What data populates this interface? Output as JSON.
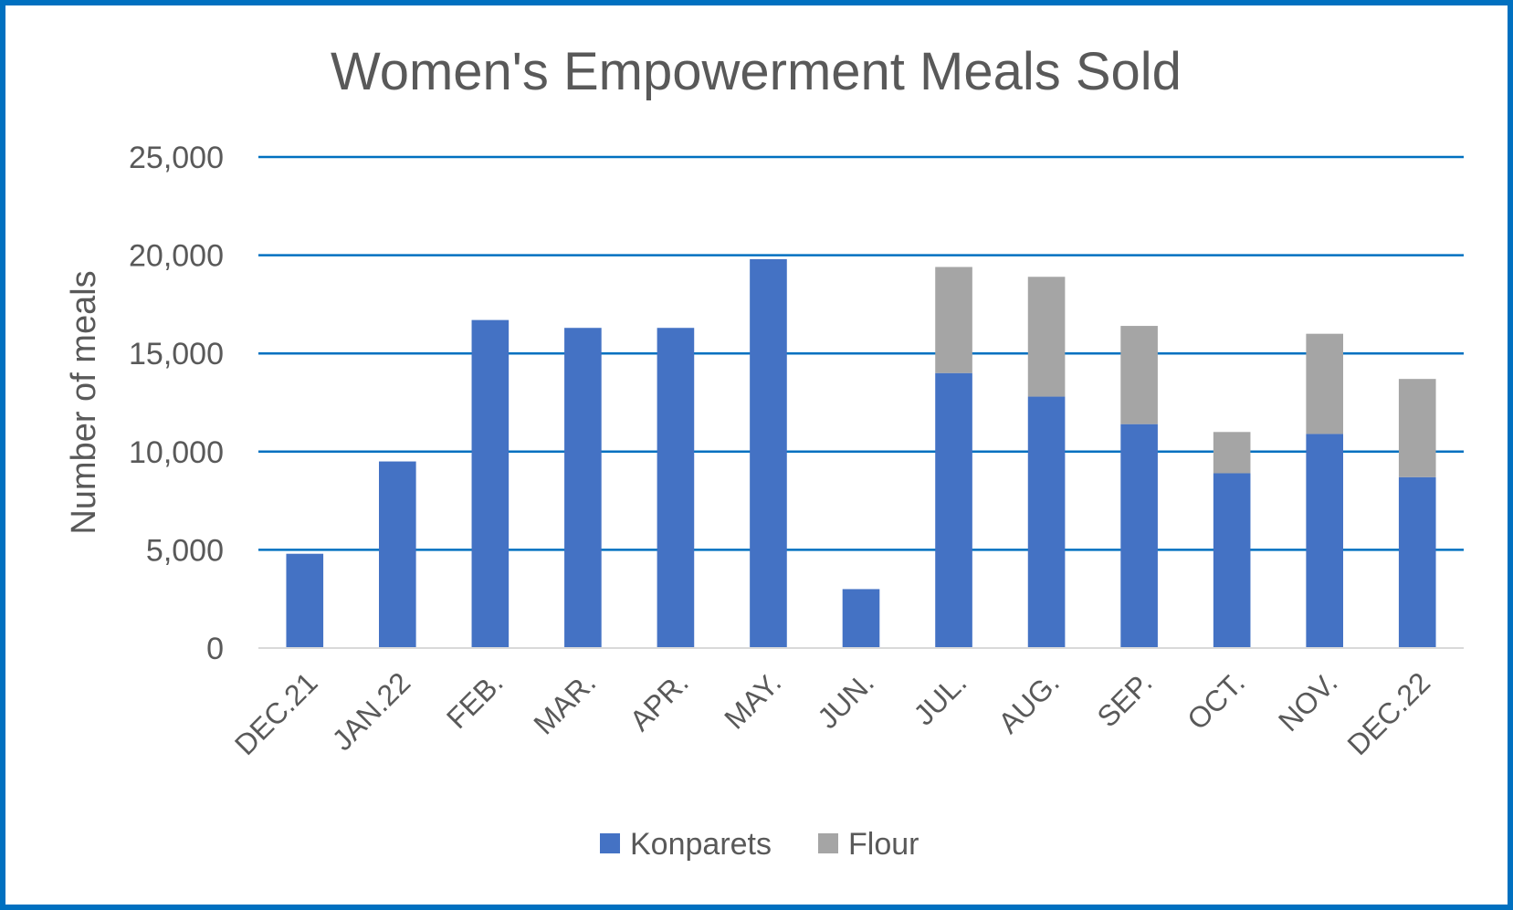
{
  "chart_data": {
    "type": "bar",
    "stacked": true,
    "title": "Women's Empowerment Meals Sold",
    "xlabel": "",
    "ylabel": "Number of meals",
    "ylim": [
      0,
      25000
    ],
    "yticks": [
      0,
      5000,
      10000,
      15000,
      20000,
      25000
    ],
    "ytick_labels": [
      "0",
      "5,000",
      "10,000",
      "15,000",
      "20,000",
      "25,000"
    ],
    "grid": true,
    "legend_position": "bottom",
    "categories": [
      "DEC.21",
      "JAN.22",
      "FEB.",
      "MAR.",
      "APR.",
      "MAY.",
      "JUN.",
      "JUL.",
      "AUG.",
      "SEP.",
      "OCT.",
      "NOV.",
      "DEC.22"
    ],
    "series": [
      {
        "name": "Konparets",
        "color": "#4472C4",
        "values": [
          4800,
          9500,
          16700,
          16300,
          16300,
          19800,
          3000,
          14000,
          12800,
          11400,
          8900,
          10900,
          8700
        ]
      },
      {
        "name": "Flour",
        "color": "#A5A5A5",
        "values": [
          0,
          0,
          0,
          0,
          0,
          0,
          0,
          5400,
          6100,
          5000,
          2100,
          5100,
          5000
        ]
      }
    ],
    "colors": {
      "grid": "#0070C0",
      "axis": "#D9D9D9",
      "border": "#0070C0"
    }
  }
}
